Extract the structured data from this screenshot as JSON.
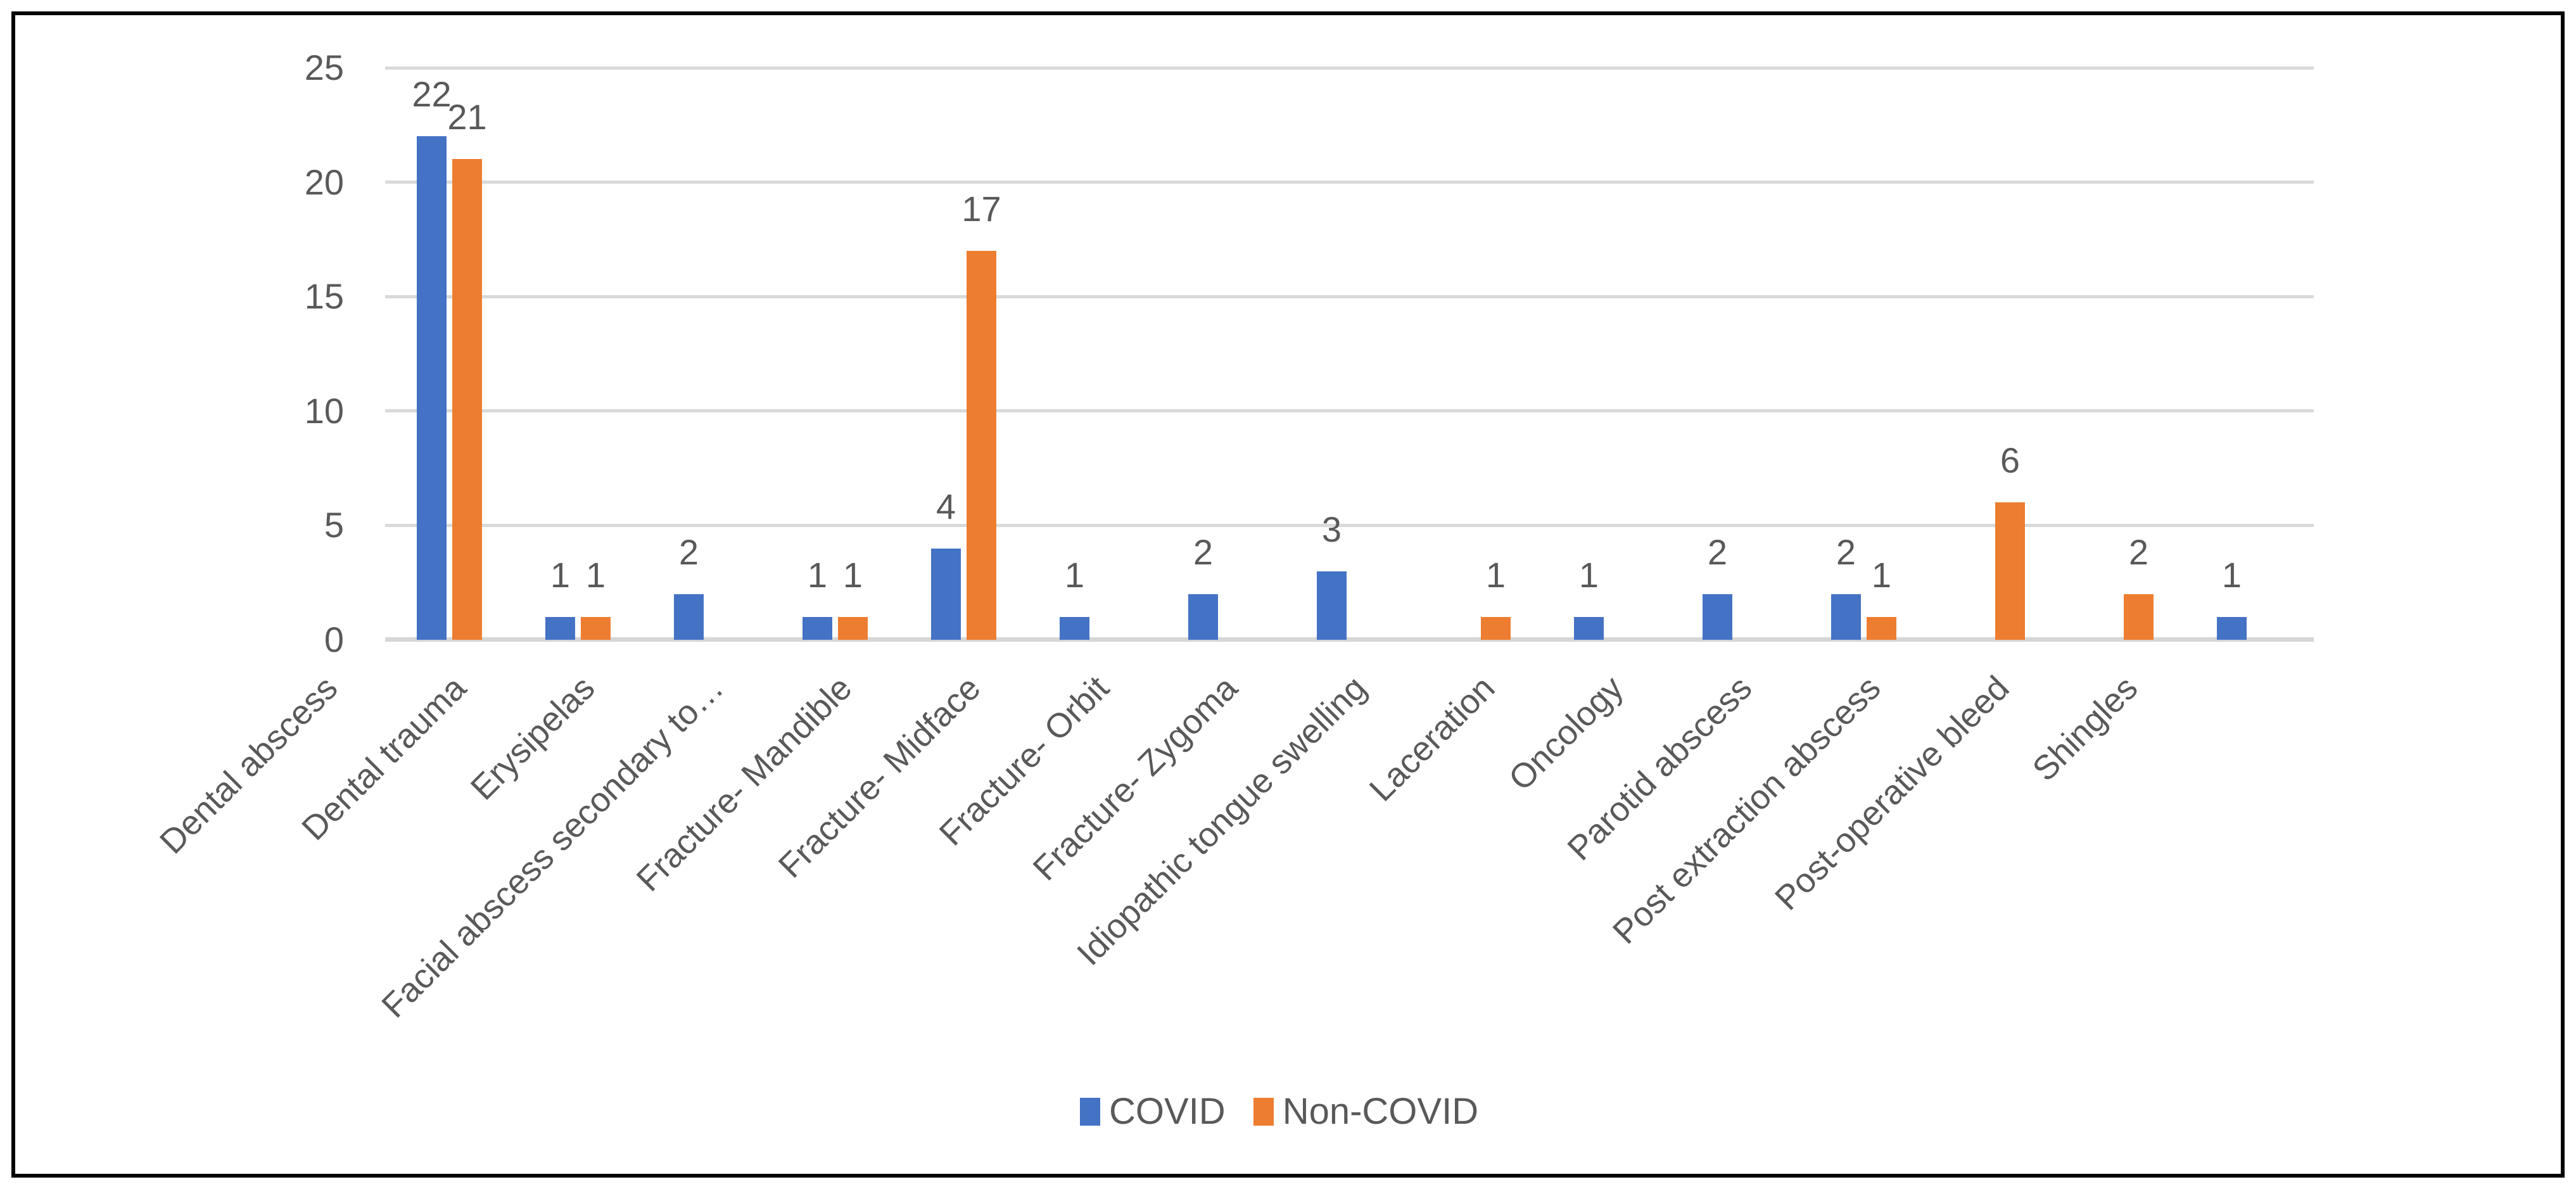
{
  "figure": {
    "background": "#ffffff",
    "frame_border_color": "#000000"
  },
  "chart_data": {
    "type": "bar",
    "title": "",
    "xlabel": "",
    "ylabel": "",
    "categories": [
      "Dental abscess",
      "Dental trauma",
      "Erysipelas",
      "Facial abscess secondary to…",
      "Fracture- Mandible",
      "Fracture- Midface",
      "Fracture- Orbit",
      "Fracture- Zygoma",
      "Idiopathic tongue swelling",
      "Laceration",
      "Oncology",
      "Parotid abscess",
      "Post extraction abscess",
      "Post-operative bleed",
      "Shingles"
    ],
    "series": [
      {
        "name": "COVID",
        "color": "#4472C4",
        "values": [
          22,
          1,
          2,
          1,
          4,
          1,
          2,
          3,
          0,
          1,
          2,
          2,
          0,
          0,
          1
        ]
      },
      {
        "name": "Non-COVID",
        "color": "#ED7D31",
        "values": [
          21,
          1,
          0,
          1,
          17,
          0,
          0,
          0,
          1,
          0,
          0,
          1,
          6,
          2,
          0
        ]
      }
    ],
    "ylim": [
      0,
      25
    ],
    "yticks": [
      0,
      5,
      10,
      15,
      20,
      25
    ],
    "grid": true,
    "data_labels": true,
    "data_labels_hidden_for_zero": true,
    "legend_position": "bottom",
    "gridline_color": "#D9D9D9",
    "axis_line_color": "#D6D6D6",
    "label_color": "#595959"
  },
  "legend": {
    "items": [
      {
        "label": "COVID",
        "color": "#4472C4"
      },
      {
        "label": "Non-COVID",
        "color": "#ED7D31"
      }
    ]
  }
}
